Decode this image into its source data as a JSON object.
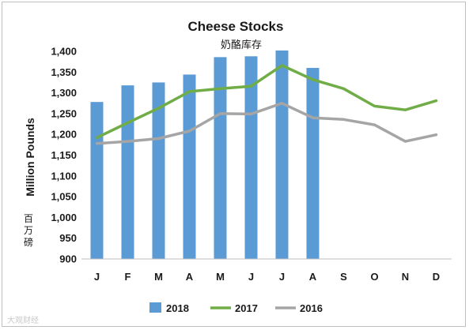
{
  "chart_data": {
    "type": "bar",
    "title": "Cheese Stocks",
    "subtitle": "奶酪库存",
    "ylabel": "Million Pounds",
    "ylabel_secondary": "百万磅",
    "categories": [
      "J",
      "F",
      "M",
      "A",
      "M",
      "J",
      "J",
      "A",
      "S",
      "O",
      "N",
      "D"
    ],
    "ylim": [
      900,
      1400
    ],
    "yticks": [
      900,
      950,
      1000,
      1050,
      1100,
      1150,
      1200,
      1250,
      1300,
      1350,
      1400
    ],
    "ytick_labels": [
      "900",
      "950",
      "1,000",
      "1,050",
      "1,100",
      "1,150",
      "1,200",
      "1,250",
      "1,300",
      "1,350",
      "1,400"
    ],
    "grid": false,
    "legend_position": "bottom",
    "series": [
      {
        "name": "2018",
        "type": "bar",
        "color": "#5b9bd5",
        "values": [
          1278,
          1318,
          1325,
          1344,
          1386,
          1388,
          1402,
          1360,
          null,
          null,
          null,
          null
        ]
      },
      {
        "name": "2017",
        "type": "line",
        "color": "#70ad47",
        "values": [
          1192,
          1228,
          1263,
          1303,
          1310,
          1316,
          1366,
          1332,
          1310,
          1268,
          1259,
          1281
        ]
      },
      {
        "name": "2016",
        "type": "line",
        "color": "#a5a5a5",
        "values": [
          1178,
          1183,
          1190,
          1208,
          1250,
          1249,
          1275,
          1240,
          1236,
          1223,
          1183,
          1199
        ]
      }
    ]
  },
  "watermark": "大观财经"
}
